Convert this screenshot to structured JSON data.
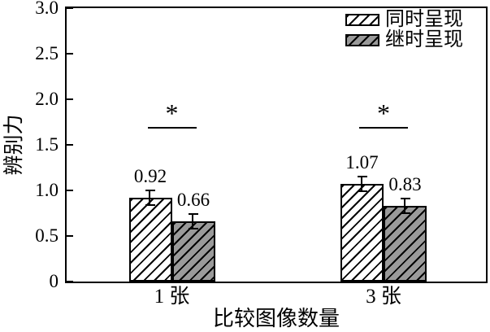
{
  "figure": {
    "background": "#ffffff"
  },
  "chart_data": {
    "type": "bar",
    "title": "",
    "xlabel": "比较图像数量",
    "ylabel": "辨别力",
    "categories": [
      "1 张",
      "3 张"
    ],
    "series": [
      {
        "name": "同时呈现",
        "values": [
          0.92,
          1.07
        ],
        "errors": [
          0.09,
          0.09
        ],
        "fill": "#ffffff",
        "hatch": "diagonal-forward"
      },
      {
        "name": "继时呈现",
        "values": [
          0.66,
          0.83
        ],
        "errors": [
          0.09,
          0.09
        ],
        "fill": "#9a9a9a",
        "hatch": "diagonal-forward"
      }
    ],
    "value_labels": [
      [
        "0.92",
        "1.07"
      ],
      [
        "0.66",
        "0.83"
      ]
    ],
    "ylim": [
      0,
      3.0
    ],
    "yticks": [
      0,
      0.5,
      1.0,
      1.5,
      2.0,
      2.5,
      3.0
    ],
    "ytick_labels": [
      "0",
      "0.5",
      "1.0",
      "1.5",
      "2.0",
      "2.5",
      "3.0"
    ],
    "grid": false,
    "legend_position": "upper-right-inside",
    "significance_markers": [
      {
        "category": "1 张",
        "label": "*",
        "line_y": 1.7
      },
      {
        "category": "3 张",
        "label": "*",
        "line_y": 1.7
      }
    ],
    "colors": {
      "gray_fill": "#9a9a9a",
      "white_fill": "#ffffff",
      "line": "#000000"
    }
  }
}
